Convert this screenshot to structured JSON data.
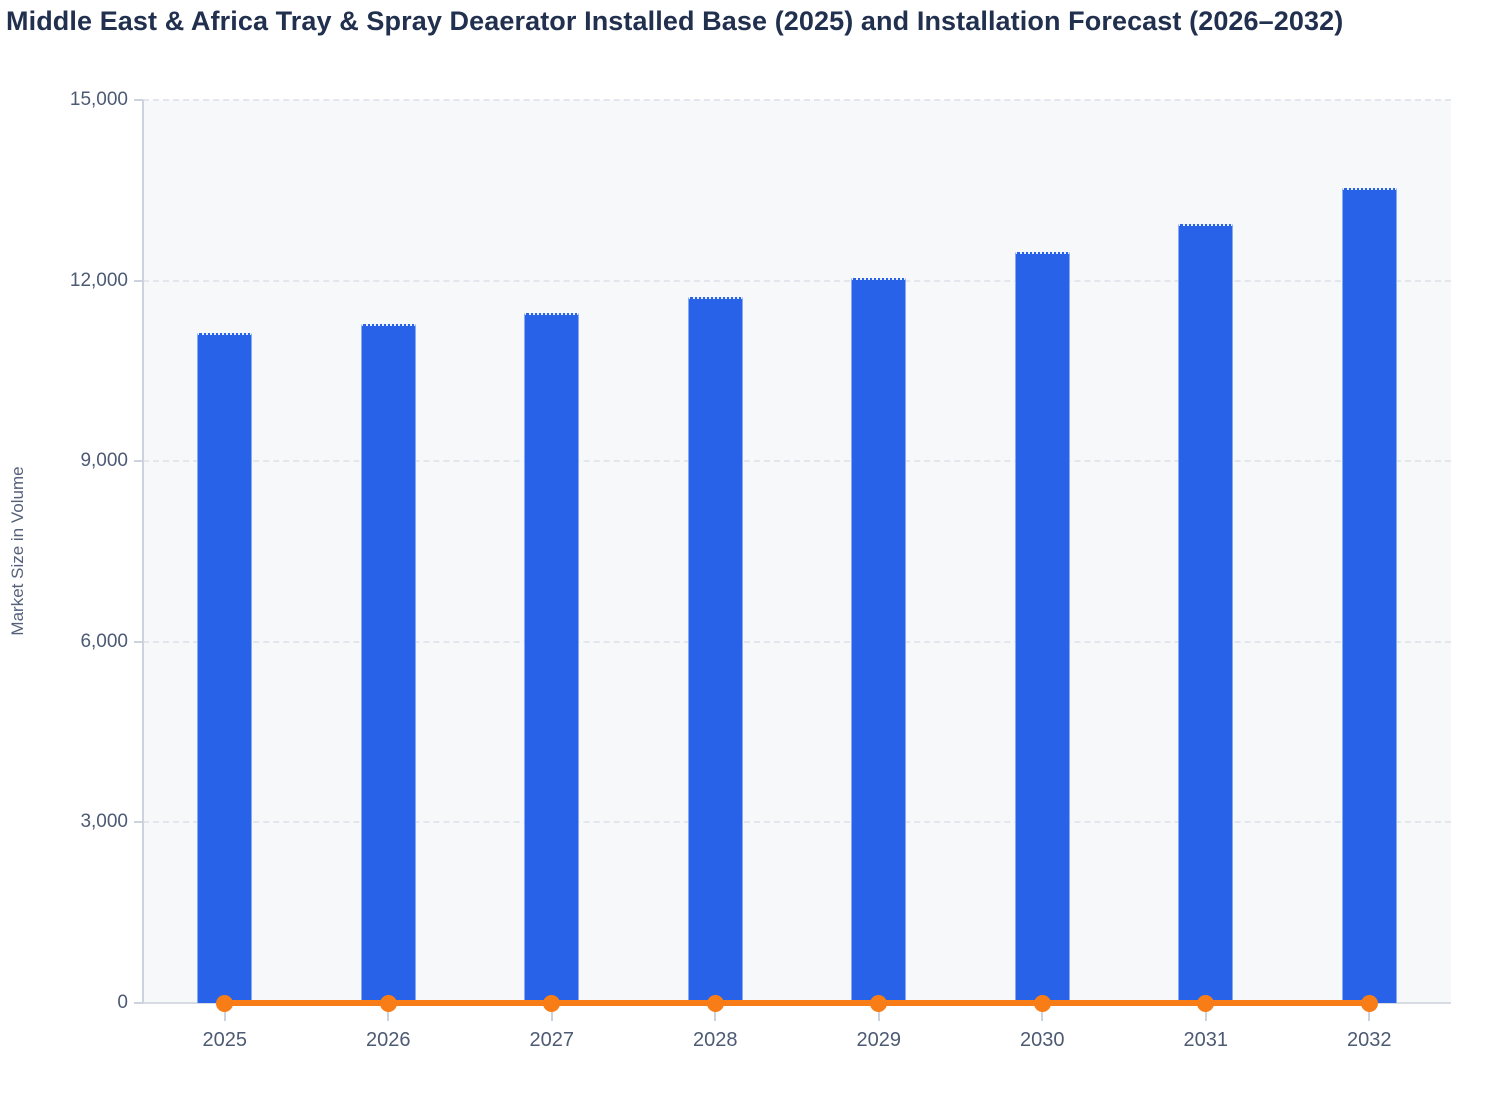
{
  "chart_data": {
    "type": "bar",
    "title": "Middle East & Africa Tray & Spray Deaerator Installed Base (2025) and Installation Forecast (2026–2032)",
    "xlabel": "",
    "ylabel": "Market Size in Volume",
    "categories": [
      "2025",
      "2026",
      "2027",
      "2028",
      "2029",
      "2030",
      "2031",
      "2032"
    ],
    "series": [
      {
        "name": "installed-base-and-forecast-bars",
        "type": "bar",
        "color": "#2862e9",
        "values": [
          11130,
          11280,
          11460,
          11730,
          12040,
          12470,
          12940,
          13530
        ]
      },
      {
        "name": "baseline-line",
        "type": "line",
        "color": "#f87d16",
        "values": [
          0,
          0,
          0,
          0,
          0,
          0,
          0,
          0
        ]
      }
    ],
    "ylim": [
      0,
      15000
    ],
    "yticks": [
      0,
      3000,
      6000,
      9000,
      12000,
      15000
    ],
    "ytick_labels": [
      "0",
      "3,000",
      "6,000",
      "9,000",
      "12,000",
      "15,000"
    ],
    "grid": "horizontal-dashed",
    "legend": "none",
    "plot_background": "#f7f8fa"
  },
  "colors": {
    "bar": "#2862e9",
    "line": "#f87d16",
    "title_text": "#21304e",
    "axis_text": "#4d5a73",
    "gridline": "#e3e6ed",
    "axis_line": "#ccd3df"
  }
}
